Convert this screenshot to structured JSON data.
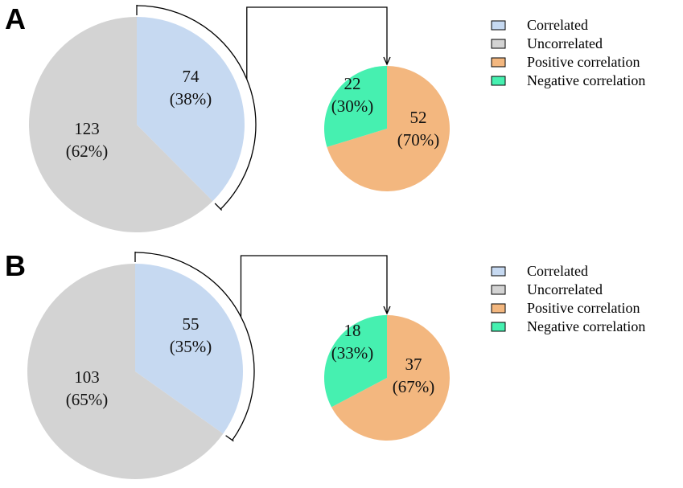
{
  "colors": {
    "correlated": "#c6d9f1",
    "uncorrelated": "#d3d3d3",
    "positive": "#f3b77f",
    "negative": "#46f0b0"
  },
  "legend": [
    "Correlated",
    "Uncorrelated",
    "Positive correlation",
    "Negative correlation"
  ],
  "chart_data": [
    {
      "panel": "A",
      "charts": [
        {
          "type": "pie",
          "labels": [
            "Correlated",
            "Uncorrelated"
          ],
          "values": [
            74,
            123
          ],
          "percent_labels": [
            "(38%)",
            "(62%)"
          ]
        },
        {
          "type": "pie",
          "labels": [
            "Positive correlation",
            "Negative correlation"
          ],
          "values": [
            52,
            22
          ],
          "percent_labels": [
            "(70%)",
            "(30%)"
          ]
        }
      ]
    },
    {
      "panel": "B",
      "charts": [
        {
          "type": "pie",
          "labels": [
            "Correlated",
            "Uncorrelated"
          ],
          "values": [
            55,
            103
          ],
          "percent_labels": [
            "(35%)",
            "(65%)"
          ]
        },
        {
          "type": "pie",
          "labels": [
            "Positive correlation",
            "Negative correlation"
          ],
          "values": [
            37,
            18
          ],
          "percent_labels": [
            "(67%)",
            "(33%)"
          ]
        }
      ]
    }
  ]
}
